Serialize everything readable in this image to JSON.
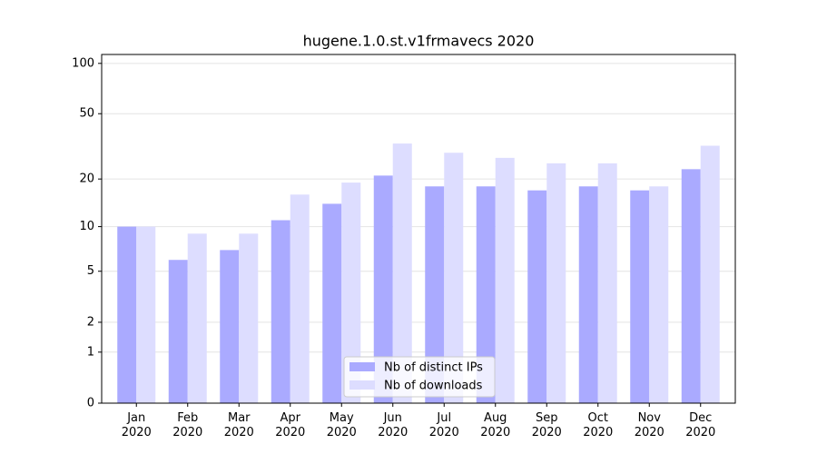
{
  "chart_data": {
    "type": "bar",
    "title": "hugene.1.0.st.v1frmavecs 2020",
    "categories": [
      "Jan 2020",
      "Feb 2020",
      "Mar 2020",
      "Apr 2020",
      "May 2020",
      "Jun 2020",
      "Jul 2020",
      "Aug 2020",
      "Sep 2020",
      "Oct 2020",
      "Nov 2020",
      "Dec 2020"
    ],
    "series": [
      {
        "name": "Nb of distinct IPs",
        "color": "#aaaaff",
        "values": [
          10,
          6,
          7,
          11,
          14,
          21,
          18,
          18,
          17,
          18,
          17,
          23
        ]
      },
      {
        "name": "Nb of downloads",
        "color": "#ddddff",
        "values": [
          10,
          9,
          9,
          16,
          19,
          33,
          29,
          27,
          25,
          25,
          18,
          32
        ]
      }
    ],
    "yscale": "log1p",
    "ylim": [
      0,
      113
    ],
    "yticks": [
      0,
      1,
      2,
      5,
      10,
      20,
      50,
      100
    ],
    "grid": true,
    "legend": "lower center"
  }
}
